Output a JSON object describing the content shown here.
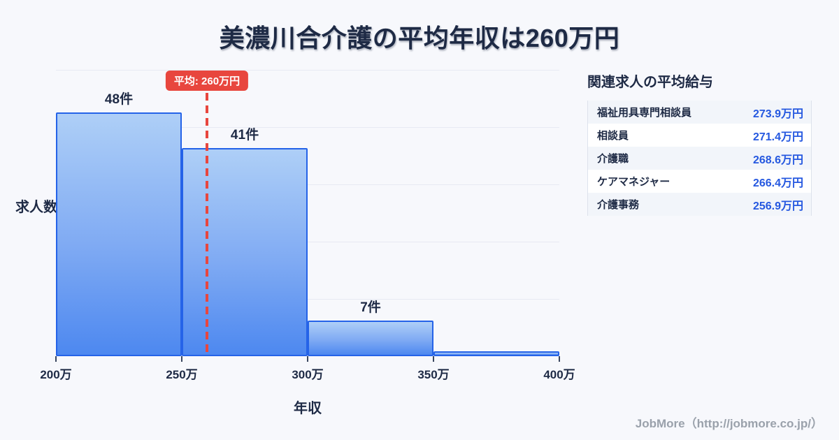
{
  "title": "美濃川合介護の平均年収は260万円",
  "chart_data": {
    "type": "bar",
    "title": "美濃川合介護の平均年収は260万円",
    "xlabel": "年収",
    "ylabel": "求人数",
    "xlim": [
      200,
      400
    ],
    "ylim": [
      0,
      56
    ],
    "grid": "horizontal",
    "unit_x": "万円",
    "unit_y": "件",
    "bins": [
      {
        "from": 200,
        "to": 250,
        "count": 48,
        "label": "48件"
      },
      {
        "from": 250,
        "to": 300,
        "count": 41,
        "label": "41件"
      },
      {
        "from": 300,
        "to": 350,
        "count": 7,
        "label": "7件"
      },
      {
        "from": 350,
        "to": 400,
        "count": 1,
        "label": ""
      }
    ],
    "x_ticks": [
      {
        "value": 200,
        "label": "200万"
      },
      {
        "value": 250,
        "label": "250万"
      },
      {
        "value": 300,
        "label": "300万"
      },
      {
        "value": 350,
        "label": "350万"
      },
      {
        "value": 400,
        "label": "400万"
      }
    ],
    "average": {
      "value": 260,
      "label": "平均: 260万円"
    }
  },
  "side_table": {
    "heading": "関連求人の平均給与",
    "rows": [
      {
        "label": "福祉用具専門相談員",
        "value": "273.9万円"
      },
      {
        "label": "相談員",
        "value": "271.4万円"
      },
      {
        "label": "介護職",
        "value": "268.6万円"
      },
      {
        "label": "ケアマネジャー",
        "value": "266.4万円"
      },
      {
        "label": "介護事務",
        "value": "256.9万円"
      }
    ]
  },
  "footer": {
    "credit": "JobMore（http://jobmore.co.jp/）"
  },
  "colors": {
    "background": "#f7f8fc",
    "title_text": "#1e2a45",
    "bar_border": "#2563e8",
    "bar_fill_top": "#aecff7",
    "bar_fill_bottom": "#4d88f0",
    "average_accent": "#e8463e",
    "gridline": "#e7eaf3",
    "salary_value_text": "#2558e0",
    "credit_text": "#9aa1ab"
  }
}
